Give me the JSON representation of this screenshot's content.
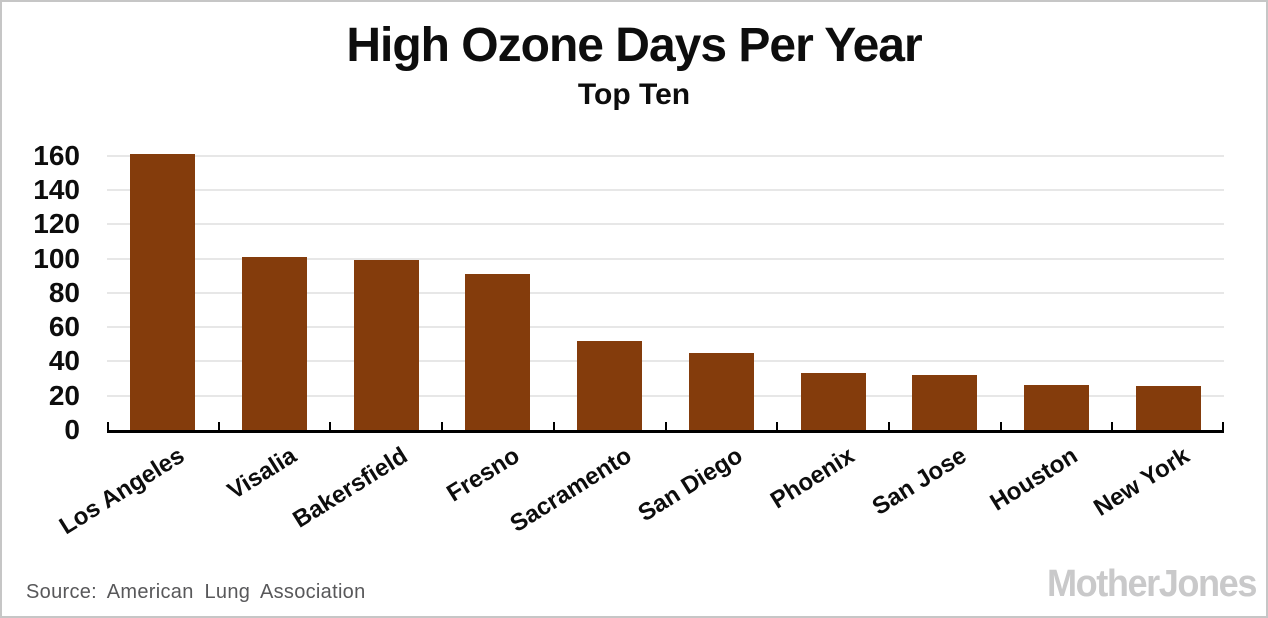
{
  "chart_data": {
    "type": "bar",
    "title": "High Ozone Days Per Year",
    "subtitle": "Top Ten",
    "categories": [
      "Los Angeles",
      "Visalia",
      "Bakersfield",
      "Fresno",
      "Sacramento",
      "San Diego",
      "Phoenix",
      "San Jose",
      "Houston",
      "New York"
    ],
    "values": [
      161,
      101,
      99,
      91,
      52,
      45,
      33,
      32,
      26,
      25.5
    ],
    "xlabel": "",
    "ylabel": "",
    "ylim": [
      0,
      168
    ],
    "yticks": [
      0,
      20,
      40,
      60,
      80,
      100,
      120,
      140,
      160
    ],
    "grid": true,
    "legend_position": "none",
    "bar_color": "#843C0C",
    "gridline_color": "#e7e7e7",
    "axis_color": "#000000"
  },
  "footer": {
    "source": "Source: American Lung Association",
    "brand": "MotherJones"
  },
  "colors": {
    "background": "#ffffff",
    "frame_border": "#c6c6c6",
    "title_text": "#0d0d0d",
    "source_text": "#58585a",
    "brand_text": "#c9c9ca"
  }
}
